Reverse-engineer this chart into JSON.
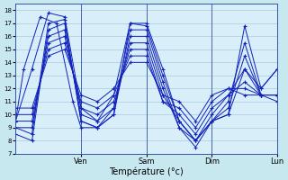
{
  "xlabel": "Température (°c)",
  "line_color": "#1122bb",
  "marker_color": "#1122bb",
  "ylim": [
    7,
    18.5
  ],
  "xlim": [
    0,
    96
  ],
  "bg_color": "#c8e8f0",
  "plot_bg": "#d8eef8",
  "grid_color": "#a0c0d8",
  "x_tick_positions": [
    24,
    48,
    72,
    96
  ],
  "x_tick_labels": [
    "Ven",
    "Sam",
    "Dim",
    "Lun"
  ],
  "y_ticks": [
    7,
    8,
    9,
    10,
    11,
    12,
    13,
    14,
    15,
    16,
    17,
    18
  ],
  "series": [
    {
      "x": [
        0,
        6,
        12,
        18,
        24,
        30,
        36,
        42,
        48,
        54,
        60,
        66,
        72,
        78,
        84,
        90,
        96
      ],
      "y": [
        9.5,
        13.5,
        17.8,
        17.5,
        10.5,
        9.5,
        11.5,
        17.0,
        17.0,
        13.5,
        9.5,
        8.0,
        9.5,
        10.0,
        13.5,
        12.0,
        13.5
      ]
    },
    {
      "x": [
        0,
        6,
        12,
        18,
        24,
        30,
        36,
        42,
        48,
        54,
        60,
        66,
        72,
        78,
        84,
        90,
        96
      ],
      "y": [
        9.0,
        8.5,
        17.0,
        17.3,
        9.5,
        9.0,
        10.5,
        16.5,
        16.5,
        12.5,
        9.0,
        8.0,
        9.5,
        10.5,
        14.5,
        11.5,
        11.5
      ]
    },
    {
      "x": [
        0,
        6,
        12,
        18,
        24,
        30,
        36,
        42,
        48,
        54,
        60,
        66,
        72,
        78,
        84,
        90,
        96
      ],
      "y": [
        8.5,
        8.0,
        16.5,
        17.0,
        9.5,
        9.0,
        10.0,
        16.0,
        16.0,
        12.0,
        9.0,
        7.5,
        9.5,
        11.0,
        15.5,
        11.5,
        11.0
      ]
    },
    {
      "x": [
        0,
        6,
        12,
        18,
        24,
        30,
        36,
        42,
        48,
        54,
        60,
        66,
        72,
        78,
        84,
        90,
        96
      ],
      "y": [
        9.0,
        9.0,
        16.0,
        16.5,
        10.0,
        9.5,
        10.5,
        15.5,
        15.5,
        11.5,
        9.5,
        8.0,
        10.0,
        11.5,
        13.5,
        11.5,
        11.5
      ]
    },
    {
      "x": [
        0,
        6,
        12,
        18,
        24,
        30,
        36,
        42,
        48,
        54,
        60,
        66,
        72,
        78,
        84,
        90,
        96
      ],
      "y": [
        9.5,
        9.5,
        15.5,
        16.0,
        10.5,
        10.0,
        11.0,
        15.0,
        15.0,
        11.0,
        10.0,
        8.5,
        10.5,
        11.5,
        12.5,
        11.5,
        11.5
      ]
    },
    {
      "x": [
        0,
        6,
        12,
        18,
        24,
        30,
        36,
        42,
        48,
        54,
        60,
        66,
        72,
        78,
        84,
        90,
        96
      ],
      "y": [
        10.0,
        10.0,
        15.0,
        15.5,
        11.0,
        10.5,
        11.5,
        14.5,
        14.5,
        11.0,
        10.5,
        9.0,
        11.0,
        12.0,
        12.0,
        11.5,
        11.5
      ]
    },
    {
      "x": [
        0,
        6,
        12,
        18,
        24,
        30,
        36,
        42,
        48,
        54,
        60,
        66,
        72,
        78,
        84,
        90,
        96
      ],
      "y": [
        10.5,
        10.5,
        14.5,
        15.0,
        11.5,
        11.0,
        12.0,
        14.0,
        14.0,
        11.5,
        11.0,
        9.5,
        11.5,
        12.0,
        11.5,
        11.5,
        11.5
      ]
    },
    {
      "x": [
        0,
        3,
        9,
        15,
        21,
        24,
        30,
        36,
        42,
        48,
        54,
        60,
        66,
        72,
        78,
        84,
        90,
        96
      ],
      "y": [
        9.5,
        13.5,
        17.5,
        17.0,
        11.0,
        9.0,
        9.0,
        10.0,
        17.0,
        16.8,
        13.0,
        9.5,
        8.0,
        9.5,
        10.0,
        16.8,
        12.0,
        13.5
      ]
    }
  ]
}
